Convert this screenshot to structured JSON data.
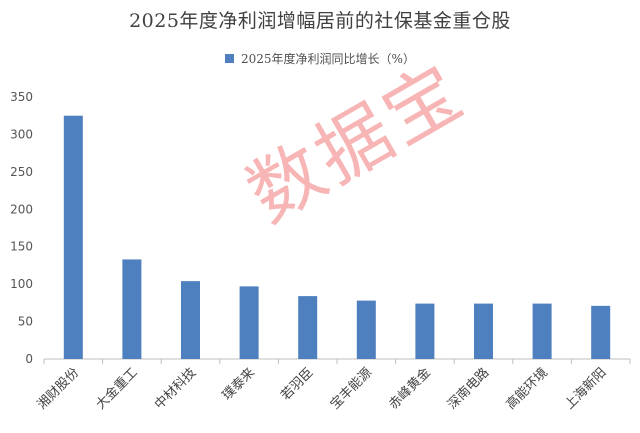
{
  "chart_data": {
    "type": "bar",
    "title": "2025年度净利润增幅居前的社保基金重仓股",
    "legend": "top",
    "grid": false,
    "ylim": [
      0,
      350
    ],
    "yticks": [
      "0",
      "50",
      "100",
      "150",
      "200",
      "250",
      "300",
      "350"
    ],
    "categories": [
      "湘财股份",
      "大金重工",
      "中材科技",
      "璞泰来",
      "若羽臣",
      "宝丰能源",
      "赤峰黄金",
      "深南电路",
      "高能环境",
      "上海新阳"
    ],
    "series": [
      {
        "name": "2025年度净利润同比增长（%）",
        "values": [
          325,
          133,
          104,
          97,
          84,
          78,
          74,
          74,
          74,
          71
        ],
        "color": "#4e7fbf"
      }
    ]
  },
  "watermark": "数据宝"
}
